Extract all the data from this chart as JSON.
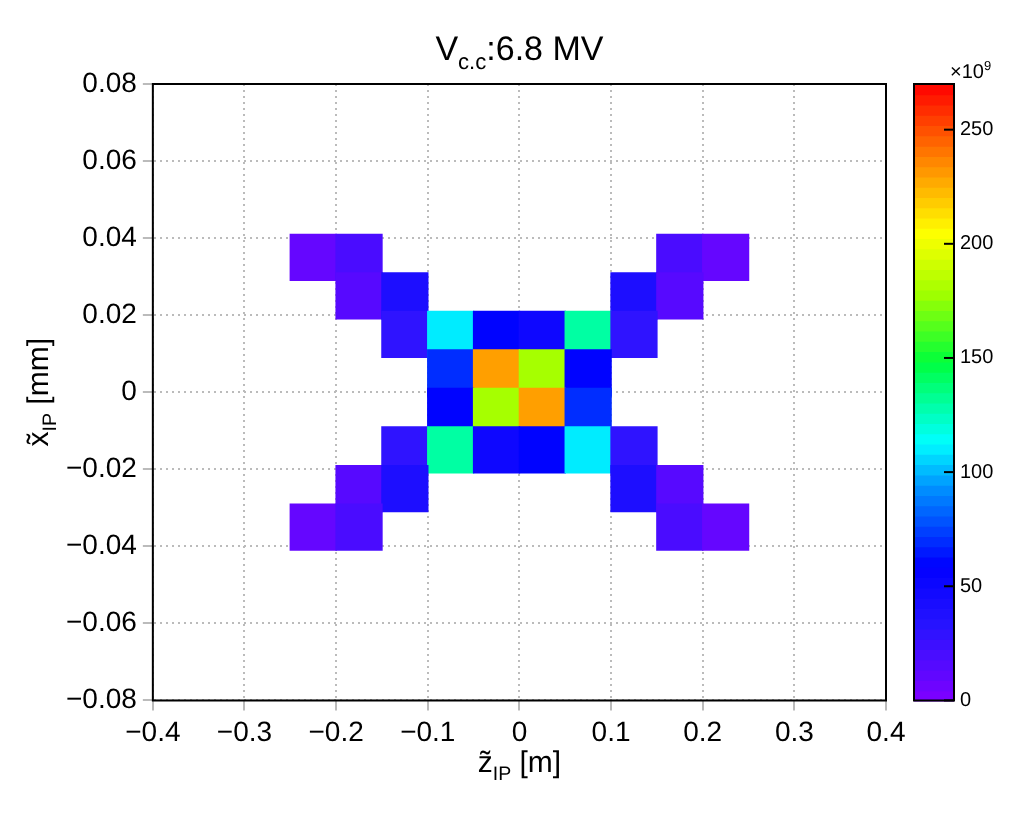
{
  "chart_data": {
    "type": "scatter",
    "title": "V$_{c.c}$:6.8 MV",
    "xlabel": "z̃$_{IP}$ [m]",
    "ylabel": "x̃$_{IP}$ [mm]",
    "clabel": "×10$^{9}$",
    "xlim": [
      -0.4,
      0.4
    ],
    "xticks": [
      -0.4,
      -0.3,
      -0.2,
      -0.1,
      0,
      0.1,
      0.2,
      0.3,
      0.4
    ],
    "ylim": [
      -0.08,
      0.08
    ],
    "yticks": [
      -0.08,
      -0.06,
      -0.04,
      -0.02,
      0,
      0.02,
      0.04,
      0.06,
      0.08
    ],
    "clim": [
      0,
      270
    ],
    "cticks": [
      0,
      50,
      100,
      150,
      200,
      250
    ],
    "grid": true,
    "marker": "square",
    "x": [
      -0.225,
      -0.175,
      0.175,
      0.225,
      -0.175,
      -0.125,
      0.125,
      0.175,
      -0.125,
      -0.075,
      -0.025,
      0.025,
      0.075,
      0.125,
      -0.075,
      -0.025,
      0.025,
      0.075,
      -0.075,
      -0.025,
      0.025,
      0.075,
      -0.125,
      -0.075,
      -0.025,
      0.025,
      0.075,
      0.125,
      -0.175,
      -0.125,
      0.125,
      0.175,
      -0.225,
      -0.175,
      0.175,
      0.225
    ],
    "values": [
      0.035,
      0.035,
      0.035,
      0.035,
      0.025,
      0.025,
      0.025,
      0.025,
      0.015,
      0.015,
      0.015,
      0.015,
      0.015,
      0.015,
      0.005,
      0.005,
      0.005,
      0.005,
      -0.005,
      -0.005,
      -0.005,
      -0.005,
      -0.015,
      -0.015,
      -0.015,
      -0.015,
      -0.015,
      -0.015,
      -0.025,
      -0.025,
      -0.025,
      -0.025,
      -0.035,
      -0.035,
      -0.035,
      -0.035
    ],
    "cvalues": [
      10,
      20,
      20,
      10,
      15,
      40,
      40,
      15,
      30,
      110,
      60,
      50,
      130,
      30,
      70,
      230,
      180,
      60,
      60,
      180,
      230,
      70,
      30,
      130,
      50,
      60,
      110,
      30,
      15,
      40,
      40,
      15,
      10,
      20,
      20,
      10
    ]
  }
}
